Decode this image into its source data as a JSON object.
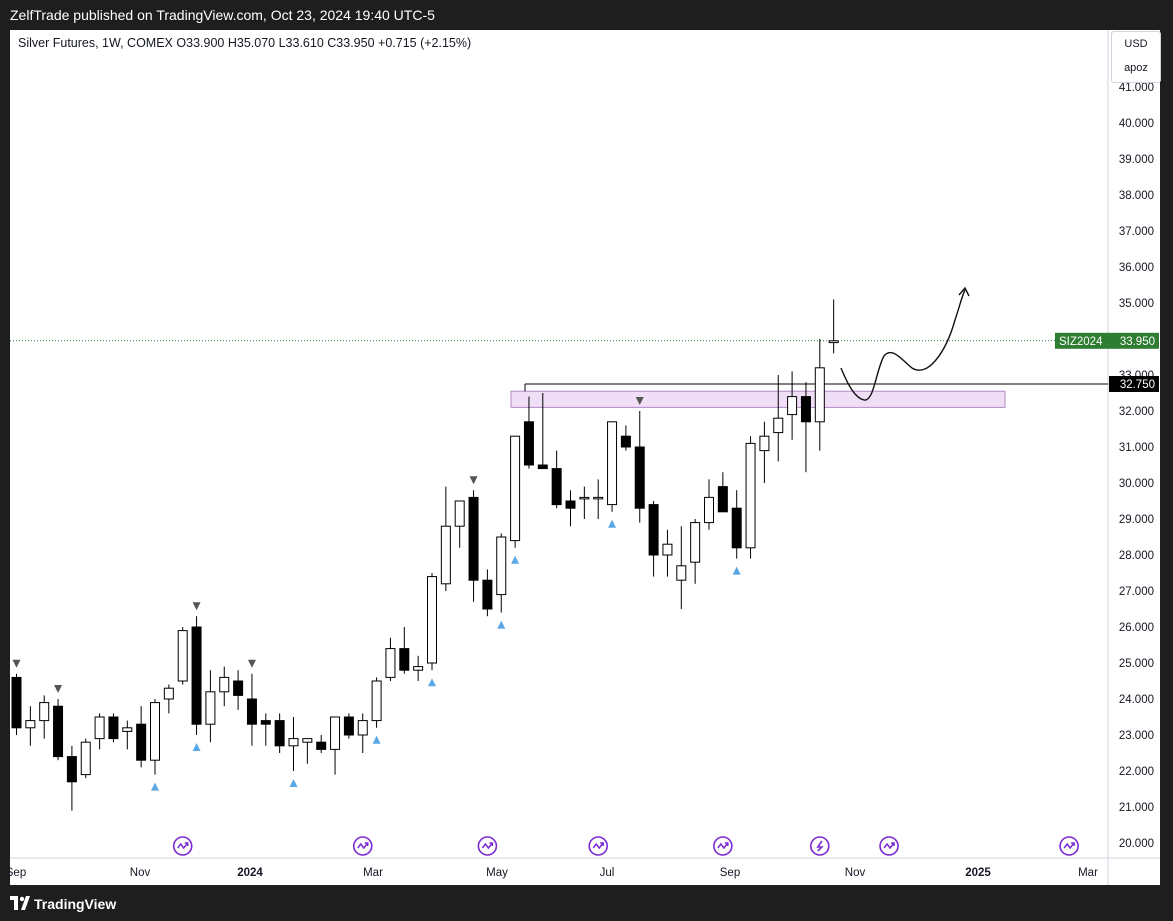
{
  "header": {
    "published": "ZelfTrade published on TradingView.com, Oct 23, 2024 19:40 UTC-5"
  },
  "legend": {
    "symbol": "Silver Futures, 1W, COMEX",
    "open": "O33.900",
    "high": "H35.070",
    "low": "L33.610",
    "close": "C33.950",
    "change": "+0.715 (+2.15%)"
  },
  "corner": {
    "currency": "USD",
    "scale": "apoz"
  },
  "footer": {
    "brand": "TradingView"
  },
  "colors": {
    "up_fill": "#ffffff",
    "down_fill": "#000000",
    "zone": "#e9d3f2",
    "last_price": "#2e7d32",
    "marker_up": "#5aa7e6",
    "marker_down": "#555555",
    "event_icon": "#7b2bd3"
  },
  "chart_data": {
    "type": "candlestick",
    "timeframe": "1W",
    "ylim": [
      19.6,
      42.0
    ],
    "y_ticks": [
      "20.000",
      "21.000",
      "22.000",
      "23.000",
      "24.000",
      "25.000",
      "26.000",
      "27.000",
      "28.000",
      "29.000",
      "30.000",
      "31.000",
      "32.000",
      "33.000",
      "34.000",
      "35.000",
      "36.000",
      "37.000",
      "38.000",
      "39.000",
      "40.000",
      "41.000"
    ],
    "x_labels": [
      "Sep",
      "Nov",
      "2024",
      "Mar",
      "May",
      "Jul",
      "Sep",
      "Nov",
      "2025",
      "Mar"
    ],
    "candles": [
      {
        "o": 24.6,
        "h": 24.7,
        "l": 23.0,
        "c": 23.2
      },
      {
        "o": 23.2,
        "h": 23.8,
        "l": 22.7,
        "c": 23.4
      },
      {
        "o": 23.4,
        "h": 24.1,
        "l": 22.9,
        "c": 23.9
      },
      {
        "o": 23.8,
        "h": 24.0,
        "l": 22.3,
        "c": 22.4
      },
      {
        "o": 22.4,
        "h": 22.7,
        "l": 20.9,
        "c": 21.7
      },
      {
        "o": 21.9,
        "h": 22.9,
        "l": 21.8,
        "c": 22.8
      },
      {
        "o": 22.9,
        "h": 23.6,
        "l": 22.6,
        "c": 23.5
      },
      {
        "o": 23.5,
        "h": 23.6,
        "l": 22.8,
        "c": 22.9
      },
      {
        "o": 23.1,
        "h": 23.4,
        "l": 22.6,
        "c": 23.2
      },
      {
        "o": 23.3,
        "h": 23.8,
        "l": 22.1,
        "c": 22.3
      },
      {
        "o": 22.3,
        "h": 24.0,
        "l": 21.9,
        "c": 23.9
      },
      {
        "o": 24.0,
        "h": 24.4,
        "l": 23.6,
        "c": 24.3
      },
      {
        "o": 24.5,
        "h": 26.0,
        "l": 24.4,
        "c": 25.9
      },
      {
        "o": 26.0,
        "h": 26.3,
        "l": 23.0,
        "c": 23.3
      },
      {
        "o": 23.3,
        "h": 24.8,
        "l": 22.8,
        "c": 24.2
      },
      {
        "o": 24.2,
        "h": 24.9,
        "l": 23.8,
        "c": 24.6
      },
      {
        "o": 24.5,
        "h": 24.8,
        "l": 23.7,
        "c": 24.1
      },
      {
        "o": 24.0,
        "h": 24.7,
        "l": 22.7,
        "c": 23.3
      },
      {
        "o": 23.4,
        "h": 23.6,
        "l": 22.7,
        "c": 23.3
      },
      {
        "o": 23.4,
        "h": 23.6,
        "l": 22.5,
        "c": 22.7
      },
      {
        "o": 22.7,
        "h": 23.5,
        "l": 22.0,
        "c": 22.9
      },
      {
        "o": 22.8,
        "h": 22.9,
        "l": 22.2,
        "c": 22.9
      },
      {
        "o": 22.8,
        "h": 23.0,
        "l": 22.5,
        "c": 22.6
      },
      {
        "o": 22.6,
        "h": 23.5,
        "l": 21.9,
        "c": 23.5
      },
      {
        "o": 23.5,
        "h": 23.6,
        "l": 22.9,
        "c": 23.0
      },
      {
        "o": 23.0,
        "h": 23.6,
        "l": 22.5,
        "c": 23.4
      },
      {
        "o": 23.4,
        "h": 24.6,
        "l": 23.2,
        "c": 24.5
      },
      {
        "o": 24.6,
        "h": 25.7,
        "l": 24.5,
        "c": 25.4
      },
      {
        "o": 25.4,
        "h": 26.0,
        "l": 24.7,
        "c": 24.8
      },
      {
        "o": 24.8,
        "h": 25.2,
        "l": 24.5,
        "c": 24.9
      },
      {
        "o": 25.0,
        "h": 27.5,
        "l": 24.8,
        "c": 27.4
      },
      {
        "o": 27.2,
        "h": 29.9,
        "l": 27.0,
        "c": 28.8
      },
      {
        "o": 28.8,
        "h": 29.3,
        "l": 28.2,
        "c": 29.5
      },
      {
        "o": 29.6,
        "h": 29.8,
        "l": 26.7,
        "c": 27.3
      },
      {
        "o": 27.3,
        "h": 27.6,
        "l": 26.3,
        "c": 26.5
      },
      {
        "o": 26.9,
        "h": 28.6,
        "l": 26.4,
        "c": 28.5
      },
      {
        "o": 28.4,
        "h": 31.3,
        "l": 28.2,
        "c": 31.3
      },
      {
        "o": 31.7,
        "h": 32.4,
        "l": 30.4,
        "c": 30.5
      },
      {
        "o": 30.5,
        "h": 32.5,
        "l": 30.4,
        "c": 30.4
      },
      {
        "o": 30.4,
        "h": 30.9,
        "l": 29.3,
        "c": 29.4
      },
      {
        "o": 29.5,
        "h": 29.8,
        "l": 28.8,
        "c": 29.3
      },
      {
        "o": 29.6,
        "h": 29.9,
        "l": 29.0,
        "c": 29.6
      },
      {
        "o": 29.6,
        "h": 30.1,
        "l": 29.0,
        "c": 29.6
      },
      {
        "o": 29.4,
        "h": 31.7,
        "l": 29.2,
        "c": 31.7
      },
      {
        "o": 31.3,
        "h": 31.6,
        "l": 30.9,
        "c": 31.0
      },
      {
        "o": 31.0,
        "h": 32.0,
        "l": 28.9,
        "c": 29.3
      },
      {
        "o": 29.4,
        "h": 29.5,
        "l": 27.4,
        "c": 28.0
      },
      {
        "o": 28.0,
        "h": 28.7,
        "l": 27.4,
        "c": 28.3
      },
      {
        "o": 27.3,
        "h": 28.8,
        "l": 26.5,
        "c": 27.7
      },
      {
        "o": 27.8,
        "h": 29.0,
        "l": 27.2,
        "c": 28.9
      },
      {
        "o": 28.9,
        "h": 30.1,
        "l": 28.7,
        "c": 29.6
      },
      {
        "o": 29.9,
        "h": 30.3,
        "l": 29.2,
        "c": 29.2
      },
      {
        "o": 29.3,
        "h": 29.8,
        "l": 27.9,
        "c": 28.2
      },
      {
        "o": 28.2,
        "h": 31.3,
        "l": 27.9,
        "c": 31.1
      },
      {
        "o": 30.9,
        "h": 31.7,
        "l": 30.0,
        "c": 31.3
      },
      {
        "o": 31.4,
        "h": 33.0,
        "l": 30.6,
        "c": 31.8
      },
      {
        "o": 31.9,
        "h": 33.1,
        "l": 31.2,
        "c": 32.4
      },
      {
        "o": 32.4,
        "h": 32.8,
        "l": 30.3,
        "c": 31.7
      },
      {
        "o": 31.7,
        "h": 34.0,
        "l": 30.9,
        "c": 33.2
      },
      {
        "o": 33.9,
        "h": 35.1,
        "l": 33.6,
        "c": 33.95
      }
    ],
    "markers_up_idx": [
      10,
      13,
      26,
      30,
      35,
      36,
      43,
      52,
      20
    ],
    "markers_down_idx": [
      0,
      3,
      13,
      17,
      33,
      45
    ],
    "event_icons_idx": [
      12,
      25,
      34,
      42,
      51,
      58,
      63,
      76
    ],
    "bolt_icon_idx": 58,
    "zone": {
      "y_low": 32.1,
      "y_high": 32.55
    },
    "level_line": {
      "value": 32.75,
      "label": "32.750"
    },
    "last_price": {
      "value": 33.95,
      "symbol": "SIZ2024",
      "label": "33.950"
    }
  }
}
